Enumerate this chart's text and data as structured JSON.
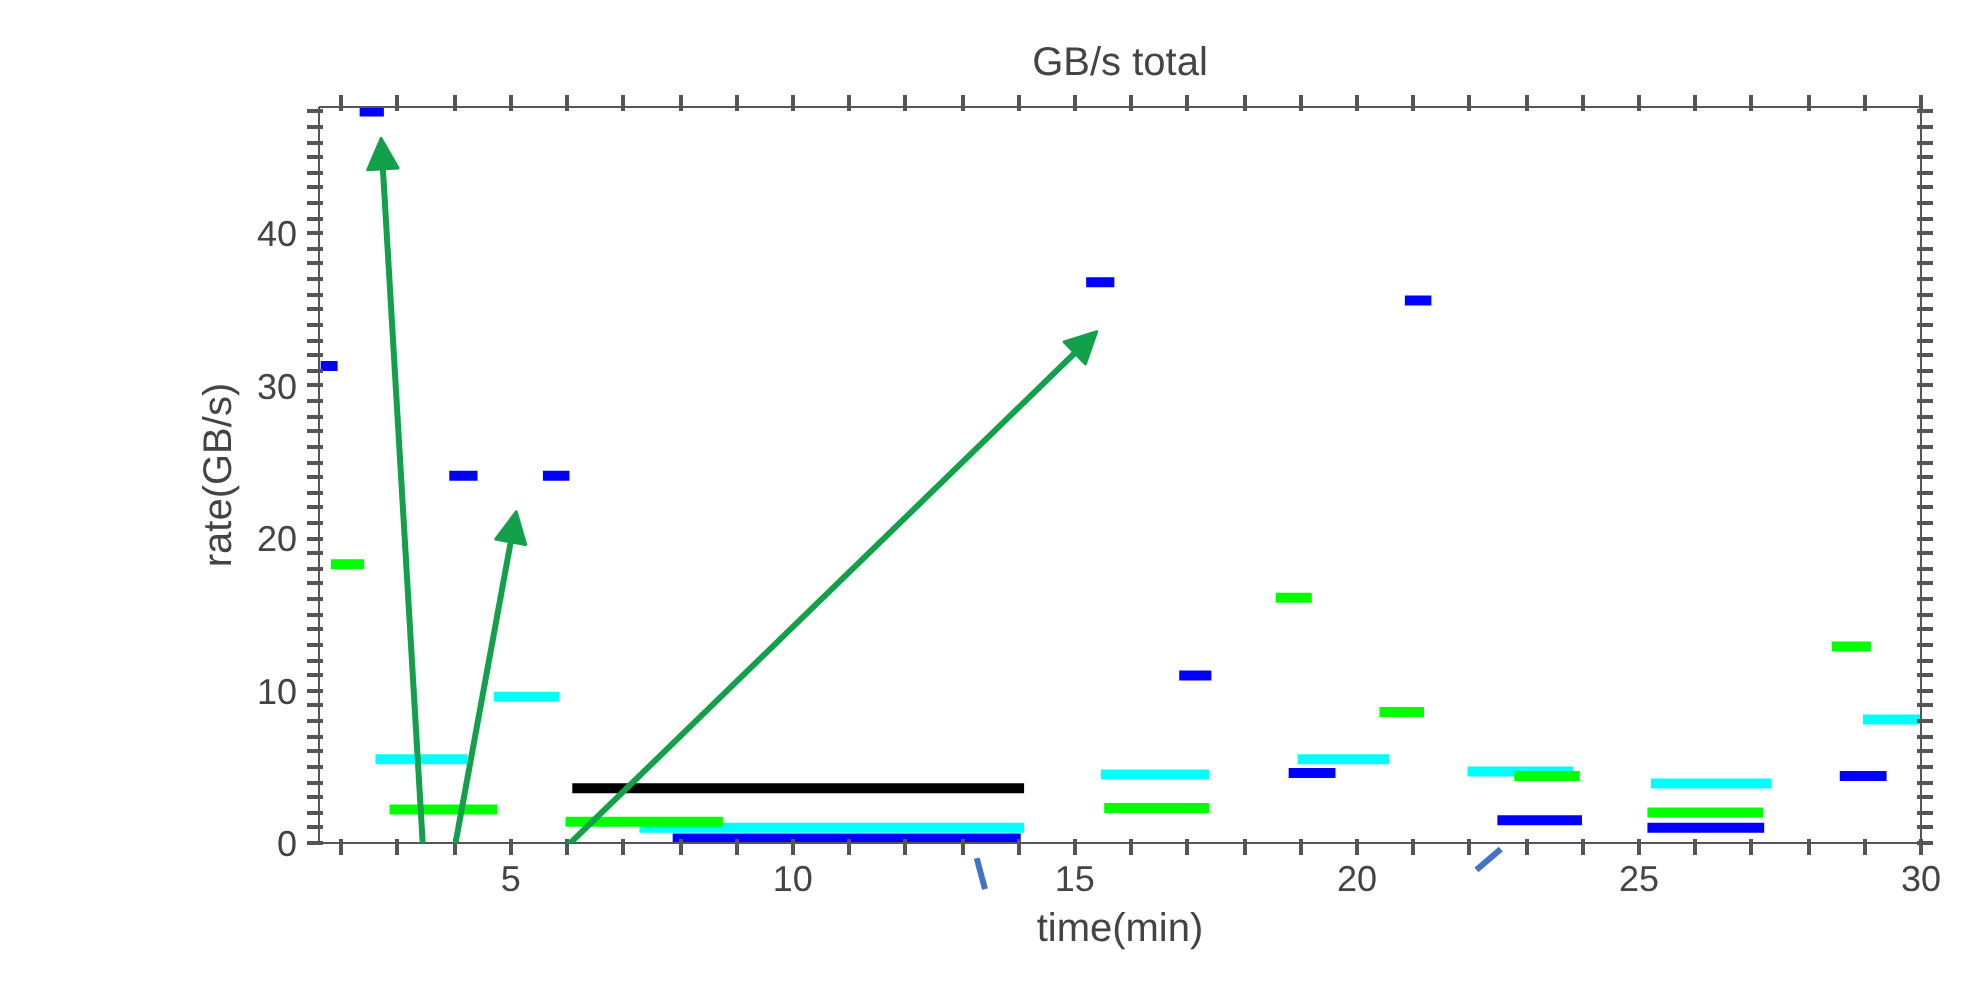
{
  "chart_data": {
    "type": "line",
    "title": "GB/s total",
    "xlabel": "time(min)",
    "ylabel": "rate(GB/s)",
    "xlim": [
      1.6,
      30
    ],
    "ylim": [
      0,
      48.3
    ],
    "xticks": [
      {
        "value": 2,
        "label": null
      },
      {
        "value": 3,
        "label": null
      },
      {
        "value": 4,
        "label": null
      },
      5,
      {
        "value": 6,
        "label": null
      },
      {
        "value": 7,
        "label": null
      },
      {
        "value": 8,
        "label": null
      },
      {
        "value": 9,
        "label": null
      },
      10,
      {
        "value": 11,
        "label": null
      },
      {
        "value": 12,
        "label": null
      },
      {
        "value": 13,
        "label": null
      },
      {
        "value": 14,
        "label": null
      },
      15,
      {
        "value": 16,
        "label": null
      },
      {
        "value": 17,
        "label": null
      },
      {
        "value": 18,
        "label": null
      },
      {
        "value": 19,
        "label": null
      },
      20,
      {
        "value": 21,
        "label": null
      },
      {
        "value": 22,
        "label": null
      },
      {
        "value": 23,
        "label": null
      },
      {
        "value": 24,
        "label": null
      },
      25,
      {
        "value": 26,
        "label": null
      },
      {
        "value": 27,
        "label": null
      },
      {
        "value": 28,
        "label": null
      },
      {
        "value": 29,
        "label": null
      },
      30
    ],
    "yticks": [
      0,
      {
        "value": 1,
        "label": null
      },
      {
        "value": 2,
        "label": null
      },
      {
        "value": 3,
        "label": null
      },
      {
        "value": 4,
        "label": null
      },
      {
        "value": 5,
        "label": null
      },
      {
        "value": 6,
        "label": null
      },
      {
        "value": 7,
        "label": null
      },
      {
        "value": 8,
        "label": null
      },
      {
        "value": 9,
        "label": null
      },
      10,
      {
        "value": 11,
        "label": null
      },
      {
        "value": 12,
        "label": null
      },
      {
        "value": 13,
        "label": null
      },
      {
        "value": 14,
        "label": null
      },
      {
        "value": 15,
        "label": null
      },
      {
        "value": 16,
        "label": null
      },
      {
        "value": 17,
        "label": null
      },
      {
        "value": 18,
        "label": null
      },
      {
        "value": 19,
        "label": null
      },
      20,
      {
        "value": 21,
        "label": null
      },
      {
        "value": 22,
        "label": null
      },
      {
        "value": 23,
        "label": null
      },
      {
        "value": 24,
        "label": null
      },
      {
        "value": 25,
        "label": null
      },
      {
        "value": 26,
        "label": null
      },
      {
        "value": 27,
        "label": null
      },
      {
        "value": 28,
        "label": null
      },
      {
        "value": 29,
        "label": null
      },
      30,
      {
        "value": 31,
        "label": null
      },
      {
        "value": 32,
        "label": null
      },
      {
        "value": 33,
        "label": null
      },
      {
        "value": 34,
        "label": null
      },
      {
        "value": 35,
        "label": null
      },
      {
        "value": 36,
        "label": null
      },
      {
        "value": 37,
        "label": null
      },
      {
        "value": 38,
        "label": null
      },
      {
        "value": 39,
        "label": null
      },
      40,
      {
        "value": 41,
        "label": null
      },
      {
        "value": 42,
        "label": null
      },
      {
        "value": 43,
        "label": null
      },
      {
        "value": 44,
        "label": null
      },
      {
        "value": 45,
        "label": null
      },
      {
        "value": 46,
        "label": null
      },
      {
        "value": 47,
        "label": null
      },
      {
        "value": 48,
        "label": null
      }
    ],
    "grid": false,
    "marker": "none",
    "line_style": "solid",
    "series": [
      {
        "color": "#0000ff",
        "x": [
          1.63,
          1.93,
          null,
          2.32,
          2.75,
          null,
          3.91,
          4.41,
          null,
          5.57,
          6.04,
          null,
          7.87,
          14.04,
          null,
          15.2,
          15.7,
          null,
          16.85,
          17.42,
          null,
          18.79,
          19.62,
          null,
          20.85,
          21.32,
          null,
          22.49,
          23.99,
          null,
          25.15,
          27.22,
          null,
          28.56,
          29.39
        ],
        "values": [
          31.3,
          31.3,
          null,
          48,
          48,
          null,
          24.1,
          24.1,
          null,
          24.1,
          24.1,
          null,
          0.3,
          0.3,
          null,
          36.8,
          36.8,
          null,
          11.0,
          11.0,
          null,
          4.6,
          4.6,
          null,
          35.6,
          35.6,
          null,
          1.5,
          1.5,
          null,
          1.0,
          1.0,
          null,
          4.4,
          4.4
        ]
      },
      {
        "color": "#00ffff",
        "x": [
          2.6,
          4.23,
          null,
          4.7,
          5.86,
          null,
          7.28,
          14.1,
          null,
          15.46,
          17.38,
          null,
          18.95,
          20.57,
          null,
          21.96,
          23.83,
          null,
          25.21,
          27.35,
          null,
          28.97,
          30
        ],
        "values": [
          5.5,
          5.5,
          null,
          9.6,
          9.6,
          null,
          1.0,
          1.0,
          null,
          4.5,
          4.5,
          null,
          5.5,
          5.5,
          null,
          4.7,
          4.7,
          null,
          3.9,
          3.9,
          null,
          8.1,
          8.1
        ]
      },
      {
        "color": "#00ff00",
        "x": [
          1.81,
          2.4,
          null,
          2.85,
          4.76,
          null,
          5.97,
          8.76,
          null,
          15.52,
          17.38,
          null,
          18.56,
          19.2,
          null,
          20.4,
          21.19,
          null,
          22.79,
          23.95,
          null,
          25.15,
          27.2,
          null,
          28.42,
          29.11
        ],
        "values": [
          18.3,
          18.3,
          null,
          2.2,
          2.2,
          null,
          1.4,
          1.4,
          null,
          2.3,
          2.3,
          null,
          16.1,
          16.1,
          null,
          8.6,
          8.6,
          null,
          4.4,
          4.4,
          null,
          2.0,
          2.0,
          null,
          12.9,
          12.9
        ]
      },
      {
        "color": "#000000",
        "x": [
          6.09,
          14.1
        ],
        "values": [
          3.6,
          3.6
        ]
      }
    ]
  }
}
